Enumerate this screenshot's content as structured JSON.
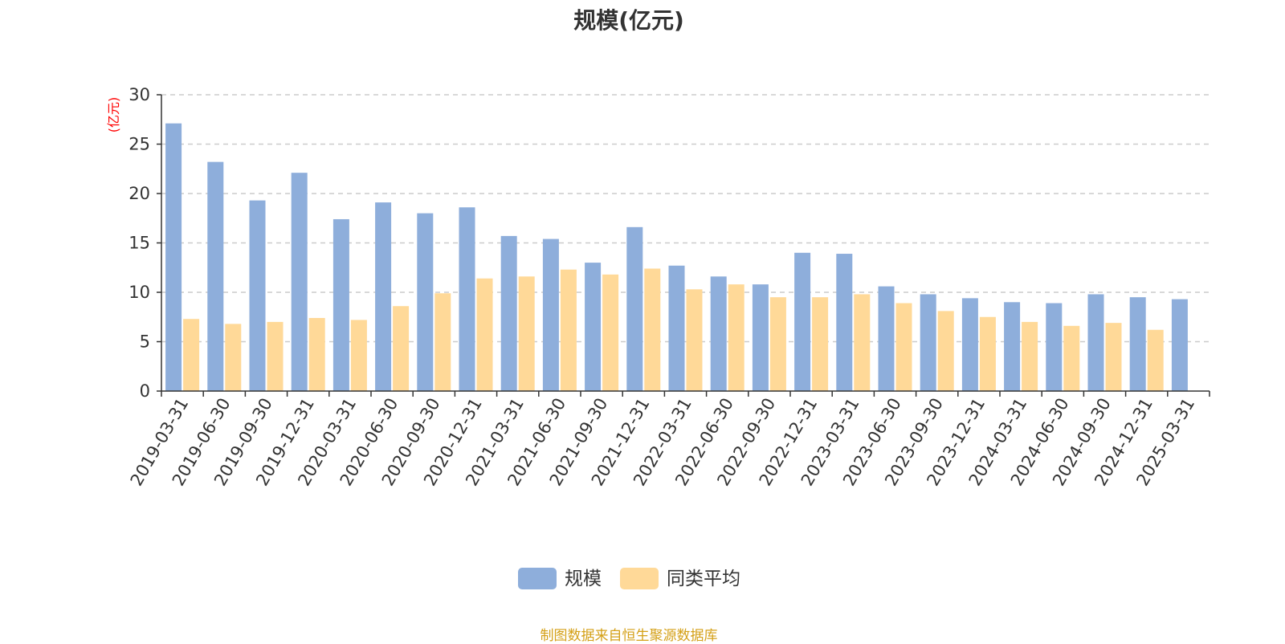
{
  "chart_data": {
    "type": "bar",
    "title": "规模(亿元)",
    "ylabel": "(亿元)",
    "xlabel": "",
    "ylim": [
      0,
      30
    ],
    "yticks": [
      0,
      5,
      10,
      15,
      20,
      25,
      30
    ],
    "grid": "horizontal-dashed",
    "legend_position": "bottom-center",
    "categories": [
      "2019-03-31",
      "2019-06-30",
      "2019-09-30",
      "2019-12-31",
      "2020-03-31",
      "2020-06-30",
      "2020-09-30",
      "2020-12-31",
      "2021-03-31",
      "2021-06-30",
      "2021-09-30",
      "2021-12-31",
      "2022-03-31",
      "2022-06-30",
      "2022-09-30",
      "2022-12-31",
      "2023-03-31",
      "2023-06-30",
      "2023-09-30",
      "2023-12-31",
      "2024-03-31",
      "2024-06-30",
      "2024-09-30",
      "2024-12-31",
      "2025-03-31"
    ],
    "series": [
      {
        "name": "规模",
        "color": "#8eaedb",
        "values": [
          27.1,
          23.2,
          19.3,
          22.1,
          17.4,
          19.1,
          18.0,
          18.6,
          15.7,
          15.4,
          13.0,
          16.6,
          12.7,
          11.6,
          10.8,
          14.0,
          13.9,
          10.6,
          9.8,
          9.4,
          9.0,
          8.9,
          9.8,
          9.5,
          9.3
        ]
      },
      {
        "name": "同类平均",
        "color": "#ffd998",
        "values": [
          7.3,
          6.8,
          7.0,
          7.4,
          7.2,
          8.6,
          9.9,
          11.4,
          11.6,
          12.3,
          11.8,
          12.4,
          10.3,
          10.8,
          9.5,
          9.5,
          9.8,
          8.9,
          8.1,
          7.5,
          7.0,
          6.6,
          6.9,
          6.2,
          null
        ]
      }
    ]
  },
  "source_note": "制图数据来自恒生聚源数据库",
  "colors": {
    "axis": "#333333",
    "grid": "#cccccc",
    "ylabel": "#ff0000",
    "title": "#333333",
    "note": "#d4a017"
  }
}
